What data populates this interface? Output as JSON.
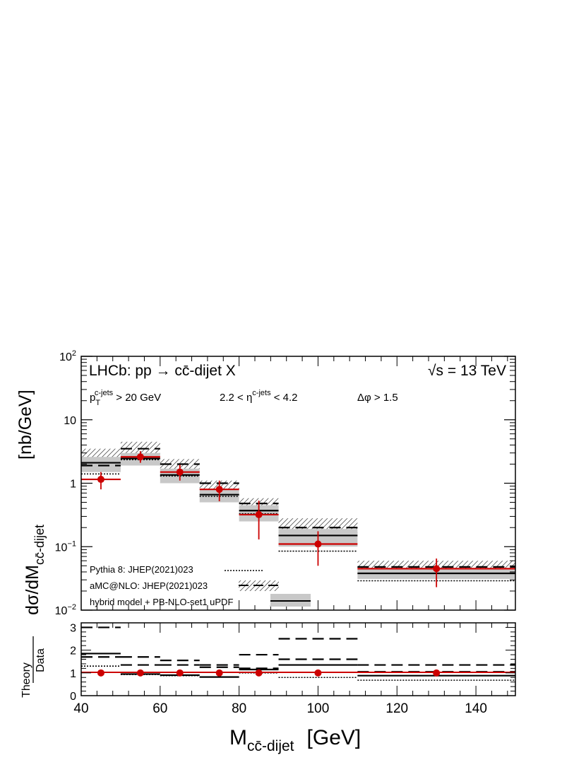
{
  "chart_data": [
    {
      "type": "line",
      "panel": "main",
      "title": "LHCb: pp → cc̄-dijet X",
      "energy_label": "√s = 13 TeV",
      "cuts": [
        "p_T^{c-jets} > 20 GeV",
        "2.2 < η^{c-jets} < 4.2",
        "Δφ > 1.5"
      ],
      "ylabel": "dσ/dM_{cc̄-dijet}",
      "yunit": "[nb/GeV]",
      "yscale": "log",
      "ylim": [
        0.01,
        100
      ],
      "xlim": [
        40,
        150
      ],
      "ytick_labels": [
        "10^{-2}",
        "10^{-1}",
        "1",
        "10",
        "10^{2}"
      ],
      "legend_position": "bottom-left",
      "legend": [
        "Pythia 8: JHEP(2021)023",
        "aMC@NLO: JHEP(2021)023",
        "hybrid model + PB-NLO-set1 uPDF"
      ],
      "bin_edges": [
        40,
        50,
        60,
        70,
        80,
        90,
        110,
        150
      ],
      "data": {
        "x": [
          45,
          55,
          65,
          75,
          85,
          100,
          130
        ],
        "y": [
          1.15,
          2.6,
          1.5,
          0.8,
          0.32,
          0.11,
          0.045
        ],
        "err_up": [
          0.35,
          0.6,
          0.45,
          0.3,
          0.21,
          0.065,
          0.02
        ],
        "err_down": [
          0.35,
          0.5,
          0.4,
          0.28,
          0.19,
          0.06,
          0.022
        ]
      },
      "series": [
        {
          "name": "Pythia 8: JHEP(2021)023",
          "style": "dotted",
          "values": [
            1.4,
            2.35,
            1.3,
            0.62,
            0.33,
            0.085,
            0.029
          ]
        },
        {
          "name": "aMC@NLO: JHEP(2021)023",
          "style": "dashed-hatched",
          "values": [
            1.9,
            3.5,
            2.0,
            1.0,
            0.48,
            0.2,
            0.048
          ],
          "band_low": [
            1.7,
            2.8,
            1.5,
            0.75,
            0.38,
            0.16,
            0.041
          ],
          "band_high": [
            3.5,
            4.5,
            2.4,
            1.1,
            0.58,
            0.28,
            0.06
          ]
        },
        {
          "name": "hybrid model + PB-NLO-set1 uPDF",
          "style": "solid-gray-band",
          "values": [
            2.1,
            2.45,
            1.35,
            0.66,
            0.37,
            0.15,
            0.038
          ],
          "band_low": [
            1.5,
            1.9,
            1.0,
            0.5,
            0.25,
            0.1,
            0.031
          ],
          "band_high": [
            2.6,
            3.0,
            1.7,
            0.8,
            0.45,
            0.19,
            0.044
          ]
        }
      ]
    },
    {
      "type": "line",
      "panel": "ratio",
      "ylabel_num": "Theory",
      "ylabel_den": "Data",
      "ylim": [
        0,
        3.2
      ],
      "yticks": [
        0,
        1,
        2,
        3
      ],
      "xticks": [
        40,
        60,
        80,
        100,
        120,
        140
      ],
      "xlabel": "M_{cc̄-dijet}",
      "xunit": "[GeV]",
      "bin_edges": [
        40,
        50,
        60,
        70,
        80,
        90,
        110,
        150
      ],
      "data_points": {
        "x": [
          45,
          55,
          65,
          75,
          85,
          100,
          130
        ],
        "y": [
          1,
          1,
          1,
          1,
          1,
          1,
          1
        ]
      },
      "series": [
        {
          "name": "Pythia 8: JHEP(2021)023",
          "style": "dotted",
          "values": [
            1.3,
            0.93,
            0.88,
            0.82,
            1.0,
            0.8,
            0.68
          ]
        },
        {
          "name": "aMC@NLO: JHEP(2021)023",
          "style": "dashed",
          "values": [
            1.7,
            1.7,
            1.55,
            1.35,
            1.8,
            2.5,
            1.35
          ]
        },
        {
          "name": "aMC@NLO: JHEP(2021)023",
          "style": "dashed",
          "values": [
            3.0,
            1.35,
            1.35,
            1.25,
            1.2,
            1.6,
            1.05
          ]
        },
        {
          "name": "hybrid model + PB-NLO-set1 uPDF",
          "style": "solid",
          "values": [
            1.85,
            0.95,
            0.9,
            0.82,
            1.15,
            1.35,
            0.88
          ]
        }
      ]
    }
  ]
}
